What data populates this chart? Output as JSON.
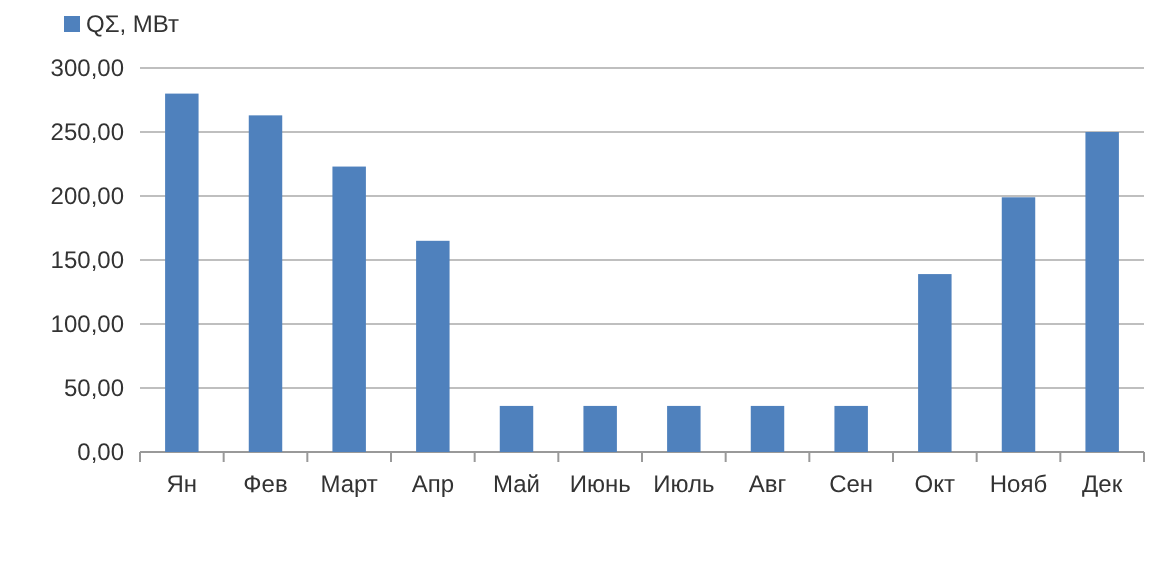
{
  "chart_data": {
    "type": "bar",
    "categories": [
      "Ян",
      "Фев",
      "Март",
      "Апр",
      "Май",
      "Июнь",
      "Июль",
      "Авг",
      "Сен",
      "Окт",
      "Нояб",
      "Дек"
    ],
    "series": [
      {
        "name": "QΣ, МВт",
        "color": "#4f81bd",
        "values": [
          280,
          263,
          223,
          165,
          36,
          36,
          36,
          36,
          36,
          139,
          199,
          250
        ]
      }
    ],
    "ylim": [
      0,
      300
    ],
    "yticks": [
      {
        "value": 0,
        "label": "0,00"
      },
      {
        "value": 50,
        "label": "50,00"
      },
      {
        "value": 100,
        "label": "100,00"
      },
      {
        "value": 150,
        "label": "150,00"
      },
      {
        "value": 200,
        "label": "200,00"
      },
      {
        "value": 250,
        "label": "250,00"
      },
      {
        "value": 300,
        "label": "300,00"
      }
    ],
    "grid": "y",
    "legend": "top left"
  }
}
